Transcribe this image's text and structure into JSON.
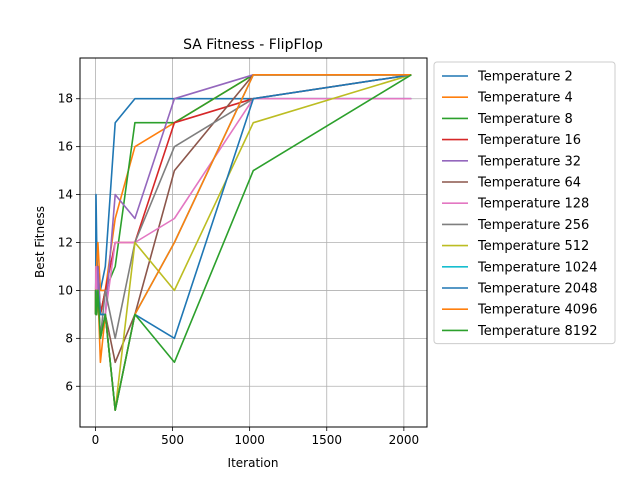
{
  "chart_data": {
    "type": "line",
    "title": "SA Fitness - FlipFlop",
    "xlabel": "Iteration",
    "ylabel": "Best Fitness",
    "xlim": [
      -100,
      2150
    ],
    "ylim": [
      4.3,
      19.7
    ],
    "xticks": [
      0,
      500,
      1000,
      1500,
      2000
    ],
    "yticks": [
      6,
      8,
      10,
      12,
      14,
      16,
      18
    ],
    "grid": true,
    "legend_position": "outside-right",
    "x": [
      1,
      2,
      4,
      8,
      16,
      32,
      64,
      128,
      256,
      512,
      1024,
      2048
    ],
    "series": [
      {
        "name": "Temperature 2",
        "color": "#1f77b4",
        "values": [
          9,
          10,
          14,
          12,
          10,
          10,
          11,
          17,
          18,
          18,
          18,
          18
        ]
      },
      {
        "name": "Temperature 4",
        "color": "#ff7f0e",
        "values": [
          9,
          10,
          11,
          11,
          12,
          10,
          10,
          13,
          16,
          17,
          19,
          19
        ]
      },
      {
        "name": "Temperature 8",
        "color": "#2ca02c",
        "values": [
          9,
          10,
          10,
          9,
          11,
          9,
          10,
          11,
          17,
          17,
          19,
          19
        ]
      },
      {
        "name": "Temperature 16",
        "color": "#d62728",
        "values": [
          9,
          10,
          10,
          10,
          11,
          9,
          10,
          12,
          12,
          17,
          18,
          19
        ]
      },
      {
        "name": "Temperature 32",
        "color": "#9467bd",
        "values": [
          9,
          10,
          9,
          9,
          11,
          9,
          9,
          14,
          13,
          18,
          19,
          19
        ]
      },
      {
        "name": "Temperature 64",
        "color": "#8c564b",
        "values": [
          9,
          10,
          9,
          9,
          10,
          8,
          9,
          7,
          9,
          15,
          19,
          19
        ]
      },
      {
        "name": "Temperature 128",
        "color": "#e377c2",
        "values": [
          9,
          10,
          11,
          10,
          10,
          9,
          9,
          12,
          12,
          13,
          18,
          18
        ]
      },
      {
        "name": "Temperature 256",
        "color": "#7f7f7f",
        "values": [
          9,
          10,
          10,
          10,
          10,
          8,
          10,
          8,
          12,
          16,
          18,
          19
        ]
      },
      {
        "name": "Temperature 512",
        "color": "#bcbd22",
        "values": [
          9,
          10,
          10,
          10,
          10,
          9,
          9,
          5,
          12,
          10,
          17,
          19
        ]
      },
      {
        "name": "Temperature 1024",
        "color": "#17becf",
        "values": [
          9,
          10,
          9,
          9,
          10,
          9,
          9,
          5,
          9,
          12,
          19,
          19
        ]
      },
      {
        "name": "Temperature 2048",
        "color": "#1f77b4",
        "values": [
          9,
          9,
          10,
          9,
          10,
          9,
          9,
          5,
          9,
          8,
          18,
          19
        ]
      },
      {
        "name": "Temperature 4096",
        "color": "#ff7f0e",
        "values": [
          9,
          10,
          9,
          9,
          10,
          7,
          9,
          5,
          9,
          12,
          19,
          19
        ]
      },
      {
        "name": "Temperature 8192",
        "color": "#2ca02c",
        "values": [
          9,
          10,
          9,
          9,
          10,
          8,
          9,
          5,
          9,
          7,
          15,
          19
        ]
      }
    ]
  }
}
